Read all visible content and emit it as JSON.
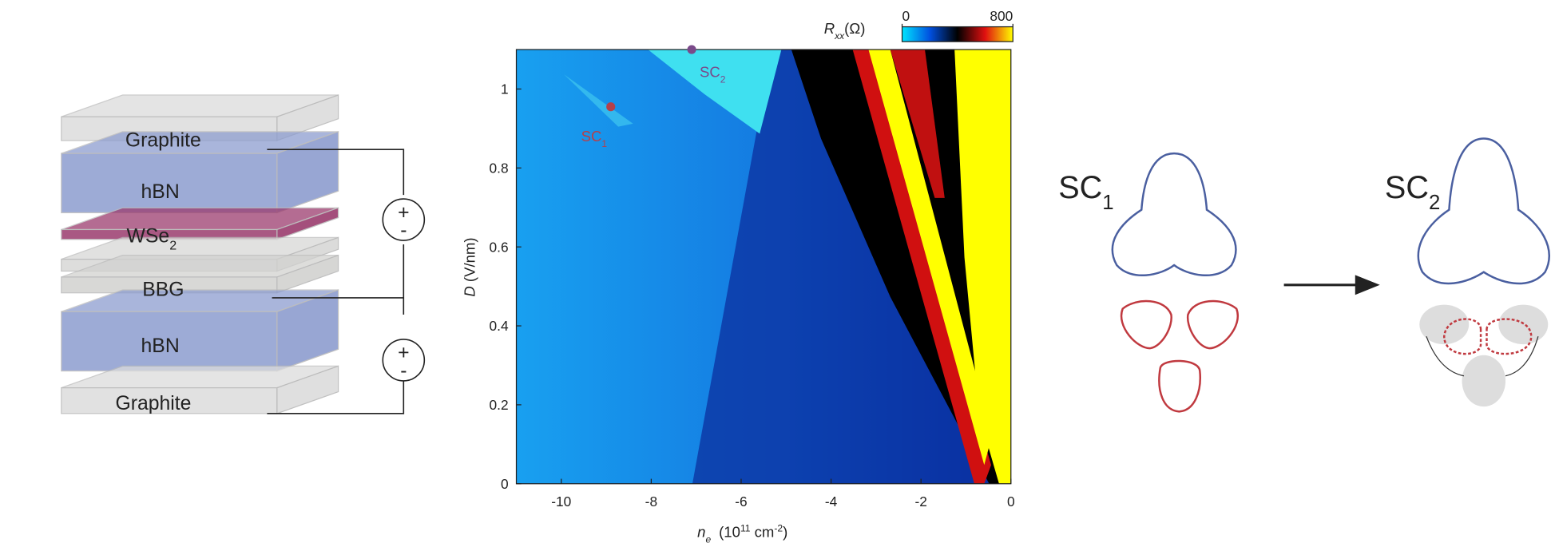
{
  "chart_data": {
    "type": "heatmap",
    "xlim": [
      -11,
      0
    ],
    "ylim": [
      0,
      1.1
    ],
    "xticks": [
      -10,
      -8,
      -6,
      -4,
      -2,
      0
    ],
    "yticks": [
      0,
      0.2,
      0.4,
      0.6,
      0.8,
      1
    ],
    "xlabel_parts": [
      "n",
      "e",
      "(10",
      "11",
      " cm",
      "-2",
      ")"
    ],
    "ylabel_parts": [
      "D",
      " (V/nm)"
    ],
    "colorbar": {
      "lim": [
        0,
        800
      ],
      "ticks": [
        0,
        800
      ],
      "label_parts": [
        "R",
        "xx",
        "(Ω)"
      ],
      "colors": [
        "#00e5ff",
        "#0050e0",
        "#000000",
        "#e01010",
        "#ffff00"
      ]
    },
    "series": [
      {
        "label": "SC",
        "subscript": "1",
        "color": "#b5404a",
        "x": [
          -8.9
        ],
        "y": [
          0.955
        ]
      },
      {
        "label": "SC",
        "subscript": "2",
        "color": "#7a4a8a",
        "x": [
          -7.1
        ],
        "y": [
          1.1
        ]
      }
    ]
  },
  "stack": {
    "layers": [
      {
        "text": "Graphite"
      },
      {
        "text": "hBN"
      },
      {
        "text": "WSe",
        "sub": "2"
      },
      {
        "text": "BBG"
      },
      {
        "text": "hBN"
      },
      {
        "text": "Graphite"
      }
    ],
    "sources": [
      {
        "plus": "+",
        "minus": "-"
      },
      {
        "plus": "+",
        "minus": "-"
      }
    ]
  },
  "fermi": {
    "panels": [
      {
        "text": "SC",
        "sub": "1"
      },
      {
        "text": "SC",
        "sub": "2"
      }
    ]
  }
}
